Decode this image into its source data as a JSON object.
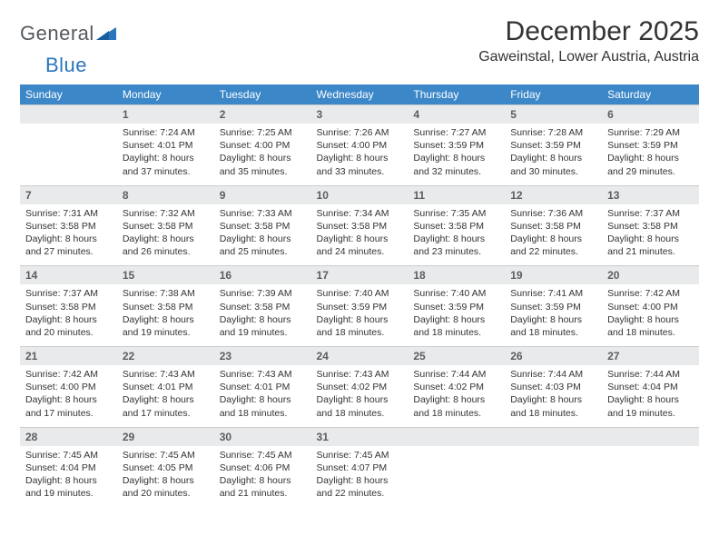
{
  "logo": {
    "part1": "General",
    "part2": "Blue"
  },
  "title": "December 2025",
  "location": "Gaweinstal, Lower Austria, Austria",
  "colors": {
    "header_bg": "#3b87c8",
    "header_fg": "#ffffff",
    "daynum_bg": "#e9eaeb",
    "daynum_fg": "#5a5e61",
    "text": "#333333",
    "logo_gray": "#555a5e",
    "logo_blue": "#2a76bd"
  },
  "dow": [
    "Sunday",
    "Monday",
    "Tuesday",
    "Wednesday",
    "Thursday",
    "Friday",
    "Saturday"
  ],
  "weeks": [
    {
      "nums": [
        "",
        "1",
        "2",
        "3",
        "4",
        "5",
        "6"
      ],
      "cells": [
        null,
        {
          "sunrise": "7:24 AM",
          "sunset": "4:01 PM",
          "daylight": "8 hours and 37 minutes."
        },
        {
          "sunrise": "7:25 AM",
          "sunset": "4:00 PM",
          "daylight": "8 hours and 35 minutes."
        },
        {
          "sunrise": "7:26 AM",
          "sunset": "4:00 PM",
          "daylight": "8 hours and 33 minutes."
        },
        {
          "sunrise": "7:27 AM",
          "sunset": "3:59 PM",
          "daylight": "8 hours and 32 minutes."
        },
        {
          "sunrise": "7:28 AM",
          "sunset": "3:59 PM",
          "daylight": "8 hours and 30 minutes."
        },
        {
          "sunrise": "7:29 AM",
          "sunset": "3:59 PM",
          "daylight": "8 hours and 29 minutes."
        }
      ]
    },
    {
      "nums": [
        "7",
        "8",
        "9",
        "10",
        "11",
        "12",
        "13"
      ],
      "cells": [
        {
          "sunrise": "7:31 AM",
          "sunset": "3:58 PM",
          "daylight": "8 hours and 27 minutes."
        },
        {
          "sunrise": "7:32 AM",
          "sunset": "3:58 PM",
          "daylight": "8 hours and 26 minutes."
        },
        {
          "sunrise": "7:33 AM",
          "sunset": "3:58 PM",
          "daylight": "8 hours and 25 minutes."
        },
        {
          "sunrise": "7:34 AM",
          "sunset": "3:58 PM",
          "daylight": "8 hours and 24 minutes."
        },
        {
          "sunrise": "7:35 AM",
          "sunset": "3:58 PM",
          "daylight": "8 hours and 23 minutes."
        },
        {
          "sunrise": "7:36 AM",
          "sunset": "3:58 PM",
          "daylight": "8 hours and 22 minutes."
        },
        {
          "sunrise": "7:37 AM",
          "sunset": "3:58 PM",
          "daylight": "8 hours and 21 minutes."
        }
      ]
    },
    {
      "nums": [
        "14",
        "15",
        "16",
        "17",
        "18",
        "19",
        "20"
      ],
      "cells": [
        {
          "sunrise": "7:37 AM",
          "sunset": "3:58 PM",
          "daylight": "8 hours and 20 minutes."
        },
        {
          "sunrise": "7:38 AM",
          "sunset": "3:58 PM",
          "daylight": "8 hours and 19 minutes."
        },
        {
          "sunrise": "7:39 AM",
          "sunset": "3:58 PM",
          "daylight": "8 hours and 19 minutes."
        },
        {
          "sunrise": "7:40 AM",
          "sunset": "3:59 PM",
          "daylight": "8 hours and 18 minutes."
        },
        {
          "sunrise": "7:40 AM",
          "sunset": "3:59 PM",
          "daylight": "8 hours and 18 minutes."
        },
        {
          "sunrise": "7:41 AM",
          "sunset": "3:59 PM",
          "daylight": "8 hours and 18 minutes."
        },
        {
          "sunrise": "7:42 AM",
          "sunset": "4:00 PM",
          "daylight": "8 hours and 18 minutes."
        }
      ]
    },
    {
      "nums": [
        "21",
        "22",
        "23",
        "24",
        "25",
        "26",
        "27"
      ],
      "cells": [
        {
          "sunrise": "7:42 AM",
          "sunset": "4:00 PM",
          "daylight": "8 hours and 17 minutes."
        },
        {
          "sunrise": "7:43 AM",
          "sunset": "4:01 PM",
          "daylight": "8 hours and 17 minutes."
        },
        {
          "sunrise": "7:43 AM",
          "sunset": "4:01 PM",
          "daylight": "8 hours and 18 minutes."
        },
        {
          "sunrise": "7:43 AM",
          "sunset": "4:02 PM",
          "daylight": "8 hours and 18 minutes."
        },
        {
          "sunrise": "7:44 AM",
          "sunset": "4:02 PM",
          "daylight": "8 hours and 18 minutes."
        },
        {
          "sunrise": "7:44 AM",
          "sunset": "4:03 PM",
          "daylight": "8 hours and 18 minutes."
        },
        {
          "sunrise": "7:44 AM",
          "sunset": "4:04 PM",
          "daylight": "8 hours and 19 minutes."
        }
      ]
    },
    {
      "nums": [
        "28",
        "29",
        "30",
        "31",
        "",
        "",
        ""
      ],
      "cells": [
        {
          "sunrise": "7:45 AM",
          "sunset": "4:04 PM",
          "daylight": "8 hours and 19 minutes."
        },
        {
          "sunrise": "7:45 AM",
          "sunset": "4:05 PM",
          "daylight": "8 hours and 20 minutes."
        },
        {
          "sunrise": "7:45 AM",
          "sunset": "4:06 PM",
          "daylight": "8 hours and 21 minutes."
        },
        {
          "sunrise": "7:45 AM",
          "sunset": "4:07 PM",
          "daylight": "8 hours and 22 minutes."
        },
        null,
        null,
        null
      ]
    }
  ],
  "labels": {
    "sunrise": "Sunrise: ",
    "sunset": "Sunset: ",
    "daylight": "Daylight: "
  }
}
